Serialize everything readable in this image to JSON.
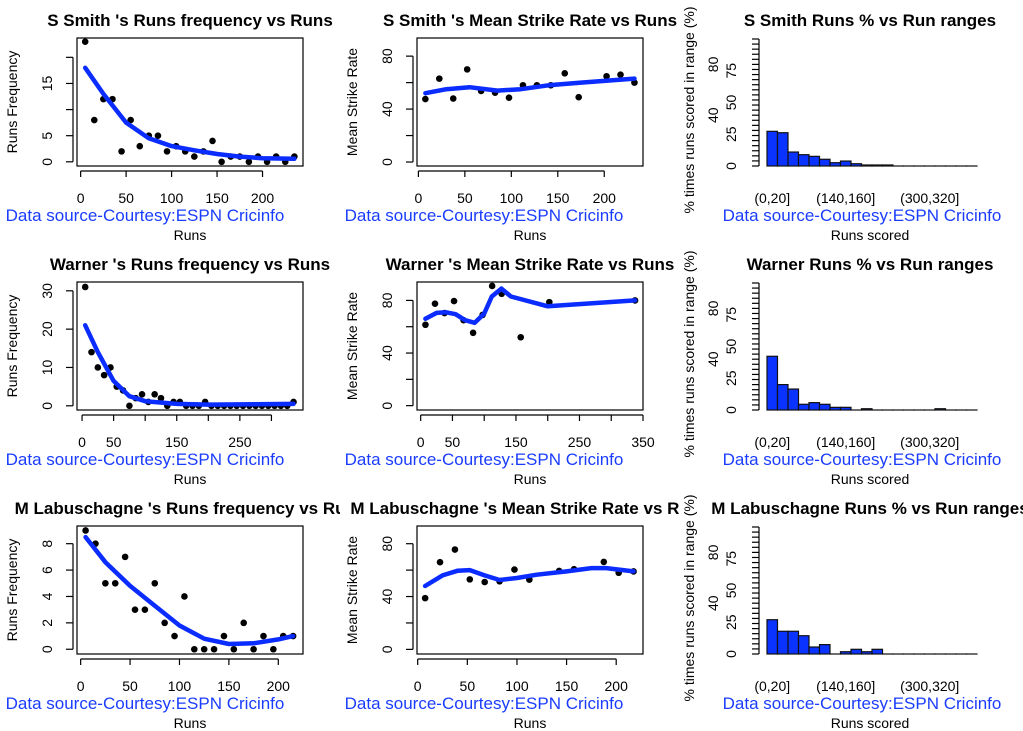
{
  "colors": {
    "fit_line": "#0a2cff",
    "points": "#000000",
    "bars": "#0a33ff",
    "source_text": "#1a3cff"
  },
  "chart_data": [
    {
      "type": "scatter",
      "title": "S Smith 's  Runs frequency vs Runs",
      "xlabel": "Runs",
      "ylabel": "Runs Frequency",
      "source": "Data source-Courtesy:ESPN Cricinfo",
      "xlim": [
        -4,
        244.5
      ],
      "ylim": [
        -0.8,
        23.7
      ],
      "xticks": [
        0,
        50,
        100,
        150,
        200
      ],
      "xtick_labels": [
        "0",
        "50",
        "100",
        "150",
        "200"
      ],
      "yticks": [
        0,
        5,
        10,
        15,
        20
      ],
      "ytick_labels": [
        "0",
        "5",
        "",
        "15",
        ""
      ],
      "x": [
        5,
        15,
        25,
        35,
        45,
        55,
        65,
        75,
        85,
        95,
        105,
        115,
        125,
        135,
        145,
        155,
        165,
        175,
        185,
        195,
        205,
        215,
        225,
        235
      ],
      "y": [
        23,
        8,
        12,
        12,
        2,
        8,
        3,
        5,
        5,
        2,
        3,
        2,
        1,
        2,
        4,
        0,
        1,
        1,
        0,
        1,
        0,
        1,
        0,
        1
      ],
      "fit": [
        [
          5,
          18
        ],
        [
          25,
          13
        ],
        [
          50,
          7.5
        ],
        [
          75,
          4.5
        ],
        [
          100,
          3
        ],
        [
          125,
          2.2
        ],
        [
          150,
          1.5
        ],
        [
          175,
          1
        ],
        [
          200,
          0.7
        ],
        [
          235,
          0.6
        ]
      ]
    },
    {
      "type": "scatter",
      "title": "S Smith 's Mean Strike Rate vs Runs",
      "xlabel": "Runs",
      "ylabel": "Mean Strike Rate",
      "source": "Data source-Courtesy:ESPN Cricinfo",
      "xlim": [
        -1.5,
        241.7
      ],
      "ylim": [
        -3,
        93.7
      ],
      "xticks": [
        0,
        50,
        100,
        150,
        200
      ],
      "xtick_labels": [
        "0",
        "50",
        "100",
        "150",
        "200"
      ],
      "yticks": [
        0,
        20,
        40,
        60,
        80
      ],
      "ytick_labels": [
        "0",
        "",
        "40",
        "",
        "80"
      ],
      "x": [
        7.5,
        22.5,
        37.5,
        52.5,
        67.5,
        82.5,
        97.5,
        112.5,
        127.5,
        142.5,
        157.5,
        172.5,
        202.5,
        217.5,
        232.5
      ],
      "y": [
        47.6,
        63,
        48,
        70,
        53.7,
        52.4,
        48.6,
        58,
        58,
        58,
        67,
        49,
        64.8,
        66,
        60
      ],
      "fit": [
        [
          7.5,
          52
        ],
        [
          30,
          55
        ],
        [
          55,
          56.5
        ],
        [
          85,
          54
        ],
        [
          110,
          55
        ],
        [
          140,
          58
        ],
        [
          175,
          60
        ],
        [
          232.5,
          63
        ]
      ]
    },
    {
      "type": "bar",
      "title": "S Smith Runs %  vs Run ranges",
      "xlabel": "Runs scored",
      "ylabel": "% times runs scored in range (%)",
      "source": "Data source-Courtesy:ESPN Cricinfo",
      "ylim": [
        0,
        100
      ],
      "ytick_labels": [
        "0",
        "25",
        "40",
        "50",
        "75",
        "80"
      ],
      "xtick_labels": [
        {
          "index": 0,
          "label": "(0,20]"
        },
        {
          "index": 7,
          "label": "(140,160]"
        },
        {
          "index": 15,
          "label": "(300,320]"
        }
      ],
      "values": [
        27.3,
        26.2,
        11.0,
        8.9,
        7.6,
        5.3,
        2.6,
        3.9,
        1.8,
        0.8,
        0.8,
        0.8,
        0,
        0,
        0,
        0,
        0,
        0,
        0,
        0
      ]
    },
    {
      "type": "scatter",
      "title": "Warner 's  Runs frequency vs Runs",
      "xlabel": "Runs",
      "ylabel": "Runs Frequency",
      "source": "Data source-Courtesy:ESPN Cricinfo",
      "xlim": [
        -8,
        350
      ],
      "ylim": [
        -1.1,
        32.3
      ],
      "xticks": [
        0,
        50,
        100,
        150,
        200,
        250,
        300
      ],
      "xtick_labels": [
        "0",
        "50",
        "",
        "150",
        "",
        "250",
        ""
      ],
      "yticks": [
        0,
        10,
        20,
        30
      ],
      "ytick_labels": [
        "0",
        "10",
        "20",
        "30"
      ],
      "x": [
        5,
        15,
        25,
        35,
        45,
        55,
        65,
        75,
        85,
        95,
        105,
        115,
        125,
        135,
        145,
        155,
        165,
        175,
        185,
        195,
        205,
        215,
        225,
        235,
        245,
        255,
        265,
        275,
        285,
        295,
        305,
        315,
        325,
        335
      ],
      "y": [
        31,
        14,
        10,
        8,
        10,
        5,
        4,
        0,
        2,
        3,
        1,
        3,
        2,
        0,
        1,
        1,
        0,
        0,
        0,
        1,
        0,
        0,
        0,
        0,
        0,
        0,
        0,
        0,
        0,
        0,
        0,
        0,
        0,
        1
      ],
      "fit": [
        [
          5,
          21
        ],
        [
          25,
          14
        ],
        [
          50,
          6.5
        ],
        [
          75,
          2.5
        ],
        [
          100,
          1.2
        ],
        [
          150,
          0.5
        ],
        [
          200,
          0.3
        ],
        [
          335,
          0.5
        ]
      ]
    },
    {
      "type": "scatter",
      "title": "Warner 's Mean Strike Rate vs Runs",
      "xlabel": "Runs",
      "ylabel": "Mean Strike Rate",
      "source": "Data source-Courtesy:ESPN Cricinfo",
      "xlim": [
        -5.8,
        350
      ],
      "ylim": [
        -3.3,
        94
      ],
      "xticks": [
        0,
        50,
        100,
        150,
        200,
        250,
        300,
        350
      ],
      "xtick_labels": [
        "0",
        "50",
        "",
        "150",
        "",
        "250",
        "",
        "350"
      ],
      "yticks": [
        0,
        20,
        40,
        60,
        80
      ],
      "ytick_labels": [
        "0",
        "",
        "40",
        "",
        "80"
      ],
      "x": [
        7.5,
        22.5,
        37.5,
        52.5,
        67.5,
        82.5,
        97.5,
        112.5,
        127.5,
        157.5,
        202.5,
        337.5
      ],
      "y": [
        61.5,
        77.5,
        70.4,
        79.5,
        65,
        55.4,
        69,
        91,
        85,
        52,
        78.7,
        80
      ],
      "fit": [
        [
          7.5,
          66
        ],
        [
          25,
          70.5
        ],
        [
          40,
          71
        ],
        [
          55,
          69.5
        ],
        [
          70,
          65
        ],
        [
          85,
          63
        ],
        [
          100,
          70
        ],
        [
          112,
          83
        ],
        [
          127,
          89
        ],
        [
          142,
          83
        ],
        [
          200,
          75.5
        ],
        [
          337.5,
          80
        ]
      ]
    },
    {
      "type": "bar",
      "title": "Warner Runs %  vs Run ranges",
      "xlabel": "Runs scored",
      "ylabel": "% times runs scored in range (%)",
      "source": "Data source-Courtesy:ESPN Cricinfo",
      "ylim": [
        0,
        100
      ],
      "ytick_labels": [
        "0",
        "25",
        "40",
        "50",
        "75",
        "80"
      ],
      "xtick_labels": [
        {
          "index": 0,
          "label": "(0,20]"
        },
        {
          "index": 7,
          "label": "(140,160]"
        },
        {
          "index": 15,
          "label": "(300,320]"
        }
      ],
      "values": [
        42.3,
        20.0,
        16.5,
        4.5,
        5.8,
        4.5,
        2.1,
        2.1,
        0,
        1.0,
        0,
        0,
        0,
        0,
        0,
        0,
        1.0,
        0,
        0,
        0
      ]
    },
    {
      "type": "scatter",
      "title": "M Labuschagne 's  Runs frequency vs Runs",
      "xlabel": "Runs",
      "ylabel": "Runs Frequency",
      "source": "Data source-Courtesy:ESPN Cricinfo",
      "xlim": [
        -3.7,
        225
      ],
      "ylim": [
        -0.36,
        9.34
      ],
      "xticks": [
        0,
        50,
        100,
        150,
        200
      ],
      "xtick_labels": [
        "0",
        "50",
        "100",
        "150",
        "200"
      ],
      "yticks": [
        0,
        2,
        4,
        6,
        8
      ],
      "ytick_labels": [
        "0",
        "2",
        "4",
        "6",
        "8"
      ],
      "x": [
        5,
        15,
        25,
        35,
        45,
        55,
        65,
        75,
        85,
        95,
        105,
        115,
        125,
        135,
        145,
        155,
        165,
        175,
        185,
        195,
        205,
        215
      ],
      "y": [
        9,
        8,
        5,
        5,
        7,
        3,
        3,
        5,
        2,
        1,
        4,
        0,
        0,
        0,
        1,
        0,
        2,
        0,
        1,
        0,
        1,
        1
      ],
      "fit": [
        [
          5,
          8.5
        ],
        [
          25,
          6.6
        ],
        [
          50,
          4.8
        ],
        [
          75,
          3.3
        ],
        [
          100,
          1.8
        ],
        [
          125,
          0.8
        ],
        [
          150,
          0.4
        ],
        [
          175,
          0.45
        ],
        [
          200,
          0.75
        ],
        [
          215,
          1
        ]
      ]
    },
    {
      "type": "scatter",
      "title": "M Labuschagne 's Mean Strike Rate vs Runs",
      "xlabel": "Runs",
      "ylabel": "Mean Strike Rate",
      "source": "Data source-Courtesy:ESPN Cricinfo",
      "xlim": [
        -0.7,
        227
      ],
      "ylim": [
        -3.5,
        93.4
      ],
      "xticks": [
        0,
        50,
        100,
        150,
        200
      ],
      "xtick_labels": [
        "0",
        "50",
        "100",
        "150",
        "200"
      ],
      "yticks": [
        0,
        20,
        40,
        60,
        80
      ],
      "ytick_labels": [
        "0",
        "",
        "40",
        "",
        "80"
      ],
      "x": [
        7.5,
        22.5,
        37.5,
        52.5,
        67.5,
        82.5,
        97.5,
        112.5,
        142.5,
        157.5,
        187.5,
        202.5,
        217.5
      ],
      "y": [
        38.8,
        66,
        75.6,
        53,
        51,
        51.5,
        60.4,
        52.8,
        59.4,
        60.7,
        66.2,
        58,
        59
      ],
      "fit": [
        [
          7.5,
          48
        ],
        [
          25,
          56
        ],
        [
          40,
          59.5
        ],
        [
          52.5,
          60
        ],
        [
          67.5,
          56
        ],
        [
          82.5,
          52.5
        ],
        [
          100,
          54
        ],
        [
          120,
          56.5
        ],
        [
          150,
          59
        ],
        [
          175,
          61.5
        ],
        [
          190,
          61.5
        ],
        [
          217.5,
          59
        ]
      ]
    },
    {
      "type": "bar",
      "title": "M Labuschagne Runs %  vs Run ranges",
      "xlabel": "Runs scored",
      "ylabel": "% times runs scored in range (%)",
      "source": "Data source-Courtesy:ESPN Cricinfo",
      "ylim": [
        0,
        100
      ],
      "ytick_labels": [
        "0",
        "25",
        "40",
        "50",
        "75",
        "80"
      ],
      "xtick_labels": [
        {
          "index": 0,
          "label": "(0,20]"
        },
        {
          "index": 7,
          "label": "(140,160]"
        },
        {
          "index": 15,
          "label": "(300,320]"
        }
      ],
      "values": [
        27.0,
        17.9,
        17.9,
        14.4,
        5.5,
        7.4,
        0,
        1.8,
        3.7,
        1.8,
        3.7,
        0,
        0,
        0,
        0,
        0,
        0,
        0,
        0,
        0
      ]
    }
  ]
}
